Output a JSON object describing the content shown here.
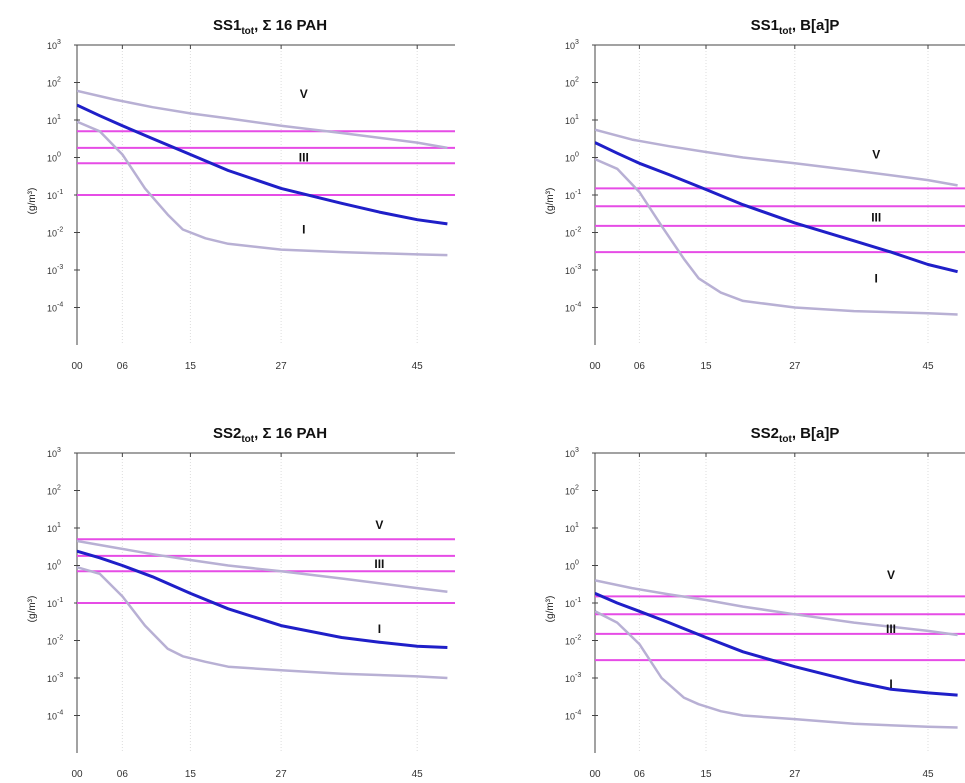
{
  "chart_data": [
    {
      "type": "line",
      "title": {
        "main": "SS1",
        "sub": "tot",
        "rest": ", Σ 16 PAH"
      },
      "ylabel": "(g/m³)",
      "yscale": "log",
      "ylim": [
        1e-05,
        1000
      ],
      "y_ticks": [
        {
          "b": "10",
          "e": "3"
        },
        {
          "b": "10",
          "e": "2"
        },
        {
          "b": "10",
          "e": "1"
        },
        {
          "b": "10",
          "e": "0"
        },
        {
          "b": "10",
          "e": "-1"
        },
        {
          "b": "10",
          "e": "-2"
        },
        {
          "b": "10",
          "e": "-3"
        },
        {
          "b": "10",
          "e": "-4"
        }
      ],
      "x_ticks": [
        "00",
        "06",
        "15",
        "27",
        "45"
      ],
      "thresholds": [
        5,
        1.8,
        0.7,
        0.1
      ],
      "zone_labels": [
        {
          "text": "V",
          "x": 30,
          "y": 50
        },
        {
          "text": "III",
          "x": 30,
          "y": 1
        },
        {
          "text": "I",
          "x": 30,
          "y": 0.012
        }
      ],
      "series": [
        {
          "role": "main",
          "x": [
            0,
            3,
            6,
            10,
            15,
            20,
            27,
            35,
            40,
            45,
            49
          ],
          "y": [
            25,
            13,
            7,
            3.2,
            1.2,
            0.45,
            0.15,
            0.06,
            0.035,
            0.022,
            0.017
          ]
        },
        {
          "role": "upper",
          "x": [
            0,
            5,
            10,
            15,
            20,
            27,
            35,
            45,
            49
          ],
          "y": [
            60,
            35,
            22,
            15,
            11,
            7,
            4.5,
            2.5,
            1.8
          ]
        },
        {
          "role": "lower",
          "x": [
            0,
            3,
            6,
            9,
            12,
            14,
            17,
            20,
            27,
            35,
            45,
            49
          ],
          "y": [
            9,
            5,
            1.2,
            0.15,
            0.03,
            0.012,
            0.007,
            0.005,
            0.0035,
            0.003,
            0.0026,
            0.0025
          ]
        }
      ]
    },
    {
      "type": "line",
      "title": {
        "main": "SS1",
        "sub": "tot",
        "rest": ", B[a]P"
      },
      "ylabel": "(g/m³)",
      "yscale": "log",
      "ylim": [
        1e-05,
        1000
      ],
      "y_ticks": [
        {
          "b": "10",
          "e": "3"
        },
        {
          "b": "10",
          "e": "2"
        },
        {
          "b": "10",
          "e": "1"
        },
        {
          "b": "10",
          "e": "0"
        },
        {
          "b": "10",
          "e": "-1"
        },
        {
          "b": "10",
          "e": "-2"
        },
        {
          "b": "10",
          "e": "-3"
        },
        {
          "b": "10",
          "e": "-4"
        }
      ],
      "x_ticks": [
        "00",
        "06",
        "15",
        "27",
        "45"
      ],
      "thresholds": [
        0.15,
        0.05,
        0.015,
        0.003
      ],
      "zone_labels": [
        {
          "text": "V",
          "x": 38,
          "y": 1.2
        },
        {
          "text": "III",
          "x": 38,
          "y": 0.025
        },
        {
          "text": "I",
          "x": 38,
          "y": 0.0006
        }
      ],
      "series": [
        {
          "role": "main",
          "x": [
            0,
            3,
            6,
            10,
            15,
            20,
            27,
            35,
            40,
            45,
            49
          ],
          "y": [
            2.5,
            1.3,
            0.7,
            0.35,
            0.14,
            0.055,
            0.018,
            0.006,
            0.003,
            0.0014,
            0.0009
          ]
        },
        {
          "role": "upper",
          "x": [
            0,
            5,
            10,
            15,
            20,
            27,
            35,
            45,
            49
          ],
          "y": [
            5.5,
            3,
            2,
            1.4,
            1,
            0.7,
            0.45,
            0.25,
            0.18
          ]
        },
        {
          "role": "lower",
          "x": [
            0,
            3,
            6,
            9,
            12,
            14,
            17,
            20,
            27,
            35,
            45,
            49
          ],
          "y": [
            0.9,
            0.5,
            0.12,
            0.015,
            0.002,
            0.0006,
            0.00025,
            0.00015,
            0.0001,
            8e-05,
            7e-05,
            6.5e-05
          ]
        }
      ]
    },
    {
      "type": "line",
      "title": {
        "main": "SS2",
        "sub": "tot",
        "rest": ", Σ 16 PAH"
      },
      "ylabel": "(g/m³)",
      "yscale": "log",
      "ylim": [
        1e-05,
        1000
      ],
      "y_ticks": [
        {
          "b": "10",
          "e": "3"
        },
        {
          "b": "10",
          "e": "2"
        },
        {
          "b": "10",
          "e": "1"
        },
        {
          "b": "10",
          "e": "0"
        },
        {
          "b": "10",
          "e": "-1"
        },
        {
          "b": "10",
          "e": "-2"
        },
        {
          "b": "10",
          "e": "-3"
        },
        {
          "b": "10",
          "e": "-4"
        }
      ],
      "x_ticks": [
        "00",
        "06",
        "15",
        "27",
        "45"
      ],
      "thresholds": [
        5,
        1.8,
        0.7,
        0.1
      ],
      "zone_labels": [
        {
          "text": "V",
          "x": 40,
          "y": 12
        },
        {
          "text": "III",
          "x": 40,
          "y": 1.1
        },
        {
          "text": "I",
          "x": 40,
          "y": 0.02
        }
      ],
      "series": [
        {
          "role": "main",
          "x": [
            0,
            3,
            6,
            10,
            15,
            20,
            27,
            35,
            40,
            45,
            49
          ],
          "y": [
            2.4,
            1.6,
            1,
            0.5,
            0.18,
            0.07,
            0.025,
            0.012,
            0.009,
            0.007,
            0.0065
          ]
        },
        {
          "role": "upper",
          "x": [
            0,
            5,
            10,
            15,
            20,
            27,
            35,
            45,
            49
          ],
          "y": [
            4.5,
            3,
            2,
            1.4,
            1,
            0.7,
            0.45,
            0.25,
            0.2
          ]
        },
        {
          "role": "lower",
          "x": [
            0,
            3,
            6,
            9,
            12,
            14,
            17,
            20,
            27,
            35,
            45,
            49
          ],
          "y": [
            0.9,
            0.6,
            0.15,
            0.025,
            0.006,
            0.0038,
            0.0027,
            0.002,
            0.0016,
            0.0013,
            0.0011,
            0.001
          ]
        }
      ]
    },
    {
      "type": "line",
      "title": {
        "main": "SS2",
        "sub": "tot",
        "rest": ", B[a]P"
      },
      "ylabel": "(g/m³)",
      "yscale": "log",
      "ylim": [
        1e-05,
        1000
      ],
      "y_ticks": [
        {
          "b": "10",
          "e": "3"
        },
        {
          "b": "10",
          "e": "2"
        },
        {
          "b": "10",
          "e": "1"
        },
        {
          "b": "10",
          "e": "0"
        },
        {
          "b": "10",
          "e": "-1"
        },
        {
          "b": "10",
          "e": "-2"
        },
        {
          "b": "10",
          "e": "-3"
        },
        {
          "b": "10",
          "e": "-4"
        }
      ],
      "x_ticks": [
        "00",
        "06",
        "15",
        "27",
        "45"
      ],
      "thresholds": [
        0.15,
        0.05,
        0.015,
        0.003
      ],
      "zone_labels": [
        {
          "text": "V",
          "x": 40,
          "y": 0.55
        },
        {
          "text": "III",
          "x": 40,
          "y": 0.02
        },
        {
          "text": "I",
          "x": 40,
          "y": 0.0007
        }
      ],
      "series": [
        {
          "role": "main",
          "x": [
            0,
            3,
            6,
            10,
            15,
            20,
            27,
            35,
            40,
            45,
            49
          ],
          "y": [
            0.18,
            0.1,
            0.06,
            0.03,
            0.012,
            0.005,
            0.002,
            0.0008,
            0.0005,
            0.0004,
            0.00035
          ]
        },
        {
          "role": "upper",
          "x": [
            0,
            5,
            10,
            15,
            20,
            27,
            35,
            45,
            49
          ],
          "y": [
            0.4,
            0.25,
            0.17,
            0.12,
            0.08,
            0.05,
            0.03,
            0.018,
            0.014
          ]
        },
        {
          "role": "lower",
          "x": [
            0,
            3,
            6,
            9,
            12,
            14,
            17,
            20,
            27,
            35,
            45,
            49
          ],
          "y": [
            0.06,
            0.03,
            0.008,
            0.001,
            0.0003,
            0.0002,
            0.00013,
            0.0001,
            8e-05,
            6e-05,
            5e-05,
            4.8e-05
          ]
        }
      ]
    }
  ],
  "style": {
    "main_line": "#1f1fc8",
    "bound_line": "#b8b0d4",
    "threshold_line": "#e64ce6",
    "axis": "#444444",
    "grid": "#dddddd"
  }
}
